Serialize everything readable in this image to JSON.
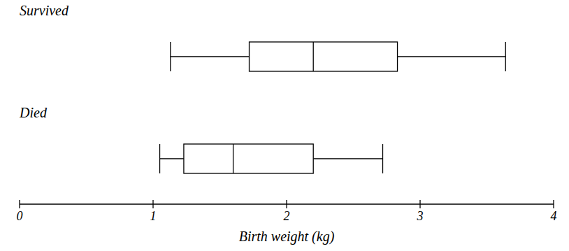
{
  "chart_data": {
    "type": "box",
    "orientation": "horizontal",
    "xlabel": "Birth weight (kg)",
    "xlim": [
      0,
      4
    ],
    "xticks": [
      0,
      1,
      2,
      3,
      4
    ],
    "color": "#000000",
    "series": [
      {
        "name": "Survived",
        "min": 1.13,
        "q1": 1.72,
        "median": 2.2,
        "q3": 2.83,
        "max": 3.64
      },
      {
        "name": "Died",
        "min": 1.05,
        "q1": 1.23,
        "median": 1.6,
        "q3": 2.2,
        "max": 2.72
      }
    ]
  }
}
